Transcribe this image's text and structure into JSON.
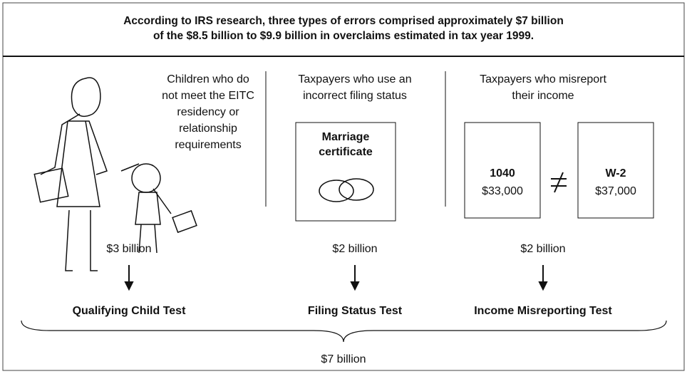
{
  "header": {
    "title": [
      "According to IRS research, three types of errors comprised approximately $7 billion",
      "of the $8.5 billion to $9.9 billion in overclaims estimated in tax year 1999."
    ]
  },
  "columns": [
    {
      "description": [
        "Children who do",
        "not meet the EITC",
        "residency or",
        "relationship",
        "requirements"
      ],
      "amount": "$3 billion",
      "test": "Qualifying Child Test"
    },
    {
      "description": [
        "Taxpayers who use an",
        "incorrect filing status"
      ],
      "document": [
        "Marriage",
        "certificate"
      ],
      "amount": "$2 billion",
      "test": "Filing Status Test"
    },
    {
      "description": [
        "Taxpayers who misreport",
        "their income"
      ],
      "forms": [
        {
          "name": "1040",
          "amount": "$33,000"
        },
        {
          "name": "W-2",
          "amount": "$37,000"
        }
      ],
      "amount": "$2 billion",
      "test": "Income Misreporting Test"
    }
  ],
  "total": "$7 billion"
}
